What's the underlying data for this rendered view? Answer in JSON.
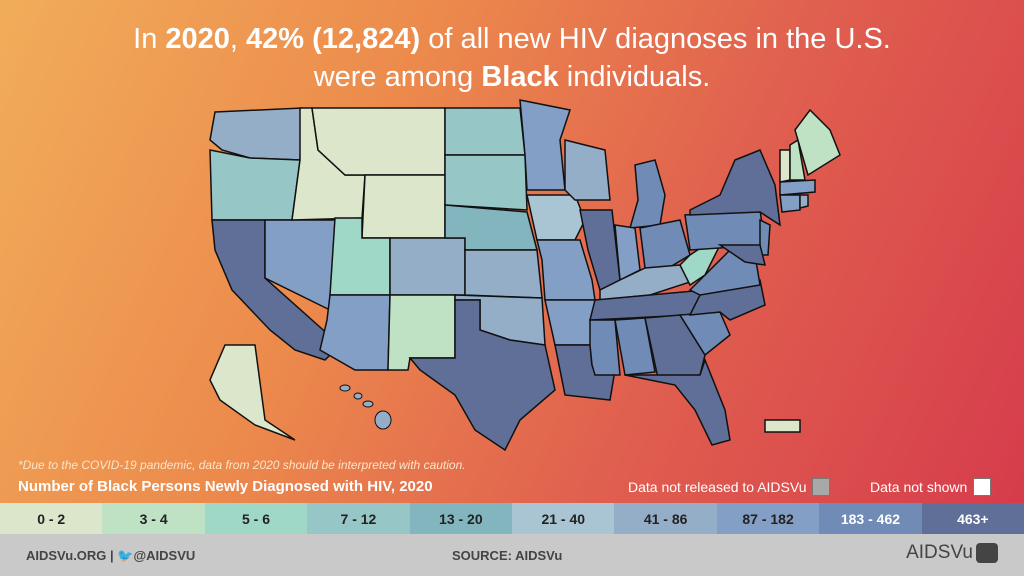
{
  "title": {
    "p1": "In ",
    "year": "2020",
    ", ": ", ",
    "pct": "42% (12,824)",
    "p2": " of all new HIV diagnoses in the U.S.",
    "p3": "were among ",
    "group": "Black",
    "p4": " individuals."
  },
  "note": "*Due to the COVID-19 pandemic, data from 2020 should be interpreted with caution.",
  "legend": {
    "title": "Number of Black Persons Newly Diagnosed with HIV, 2020",
    "not_released": "Data not released to AIDSVu",
    "not_released_color": "#a8a8a8",
    "not_shown": "Data not shown",
    "not_shown_color": "#ffffff",
    "bins": [
      {
        "label": "0 - 2",
        "color": "#dce6cb"
      },
      {
        "label": "3 - 4",
        "color": "#c0e2c4"
      },
      {
        "label": "5 - 6",
        "color": "#9fd8c6"
      },
      {
        "label": "7 - 12",
        "color": "#97c6c6"
      },
      {
        "label": "13 - 20",
        "color": "#82b5bd"
      },
      {
        "label": "21 - 40",
        "color": "#a9c4d2"
      },
      {
        "label": "41 - 86",
        "color": "#95aec8"
      },
      {
        "label": "87 - 182",
        "color": "#839fc5"
      },
      {
        "label": "183 - 462",
        "color": "#6f8bb6"
      },
      {
        "label": "463+",
        "color": "#5f6f98"
      }
    ]
  },
  "state_bins": {
    "WA": 6,
    "OR": 3,
    "CA": 9,
    "NV": 7,
    "ID": 0,
    "MT": 0,
    "WY": 0,
    "UT": 2,
    "CO": 6,
    "AZ": 7,
    "NM": 1,
    "ND": 3,
    "SD": 3,
    "NE": 4,
    "KS": 6,
    "OK": 6,
    "TX": 9,
    "MN": 7,
    "IA": 5,
    "MO": 7,
    "AR": 7,
    "LA": 9,
    "WI": 6,
    "IL": 9,
    "MI": 8,
    "IN": 7,
    "OH": 8,
    "KY": 6,
    "TN": 9,
    "MS": 8,
    "AL": 8,
    "GA": 9,
    "FL": 9,
    "SC": 8,
    "NC": 9,
    "VA": 8,
    "WV": 2,
    "PA": 8,
    "NY": 9,
    "NJ": 8,
    "MD": 9,
    "VT": 0,
    "NH": 1,
    "ME": 1,
    "MA": 7,
    "CT": 7,
    "RI": 6,
    "AK": 0,
    "HI": 6,
    "PR": 0
  },
  "footer": {
    "left": "AIDSVu.ORG  |  🐦@AIDSVU",
    "source": "SOURCE: AIDSVu",
    "logo": "AIDSVu"
  }
}
